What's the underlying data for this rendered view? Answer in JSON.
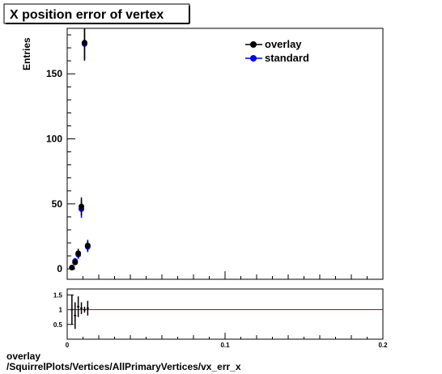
{
  "title": "X position error of vertex",
  "footer": {
    "line1": "overlay",
    "line2": "/SquirrelPlots/Vertices/AllPrimaryVertices/vx_err_x"
  },
  "colors": {
    "overlay": "#000000",
    "standard": "#0000ff",
    "ratio_line": "#cc0000"
  },
  "chart_data": [
    {
      "type": "scatter",
      "panel": "main",
      "xlim": [
        0,
        0.2
      ],
      "ylim": [
        -8,
        185
      ],
      "ylabel": "Entries",
      "xlabel": "",
      "y_ticks": [
        "0",
        "50",
        "100",
        "150"
      ],
      "legend": {
        "placement": "top-right",
        "entries": [
          "overlay",
          "standard"
        ]
      },
      "series": [
        {
          "name": "overlay",
          "x": [
            0.003,
            0.005,
            0.007,
            0.009,
            0.011,
            0.013
          ],
          "y": [
            1,
            5,
            12,
            48,
            174,
            18
          ],
          "err": [
            1,
            2.2,
            3.5,
            7,
            13,
            4.3
          ]
        },
        {
          "name": "standard",
          "x": [
            0.003,
            0.005,
            0.007,
            0.009,
            0.011,
            0.013
          ],
          "y": [
            1,
            6,
            11,
            46,
            173,
            17
          ],
          "err": [
            1,
            2.4,
            3.3,
            6.8,
            13,
            4.1
          ]
        }
      ]
    },
    {
      "type": "scatter",
      "panel": "ratio",
      "xlim": [
        0,
        0.2
      ],
      "ylim": [
        0,
        1.7
      ],
      "y_ticks": [
        "0.5",
        "1",
        "1.5"
      ],
      "x_ticks": [
        "0",
        "0.1",
        "0.2"
      ],
      "reference_line": 1,
      "series": [
        {
          "name": "ratio",
          "x": [
            0.003,
            0.005,
            0.007,
            0.009,
            0.011,
            0.013
          ],
          "y": [
            1,
            0.8,
            1.1,
            1.05,
            1.0,
            1.05
          ],
          "err": [
            0.5,
            0.45,
            0.35,
            0.2,
            0.1,
            0.25
          ]
        }
      ]
    }
  ]
}
